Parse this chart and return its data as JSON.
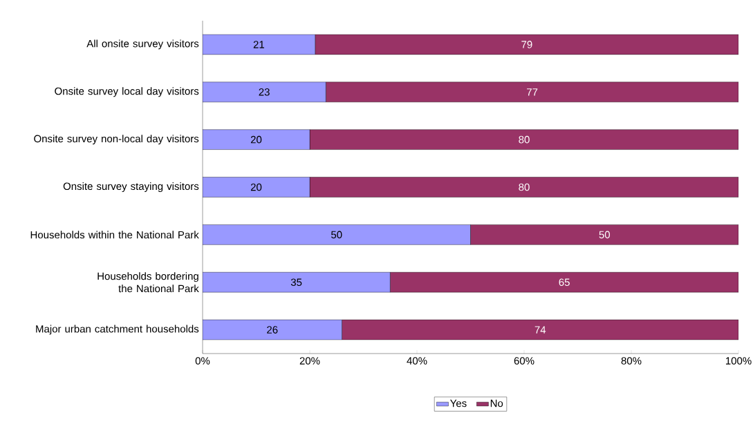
{
  "chart_data": {
    "type": "bar",
    "orientation": "horizontal",
    "stacked": true,
    "data_labels": true,
    "categories": [
      "All onsite survey visitors",
      "Onsite survey local day visitors",
      "Onsite survey non-local day visitors",
      "Onsite survey staying visitors",
      "Households within the National Park",
      "Households bordering the National Park",
      "Major urban catchment households"
    ],
    "series": [
      {
        "name": "Yes",
        "color": "#9999ff",
        "values": [
          21,
          23,
          20,
          20,
          50,
          35,
          26
        ]
      },
      {
        "name": "No",
        "color": "#993366",
        "values": [
          79,
          77,
          80,
          80,
          50,
          65,
          74
        ]
      }
    ],
    "xlim": [
      0,
      100
    ],
    "xticks": [
      {
        "value": 0,
        "label": "0%"
      },
      {
        "value": 20,
        "label": "20%"
      },
      {
        "value": 40,
        "label": "40%"
      },
      {
        "value": 60,
        "label": "60%"
      },
      {
        "value": 80,
        "label": "80%"
      },
      {
        "value": 100,
        "label": "100%"
      }
    ],
    "legend": "bottom",
    "grid": false
  }
}
